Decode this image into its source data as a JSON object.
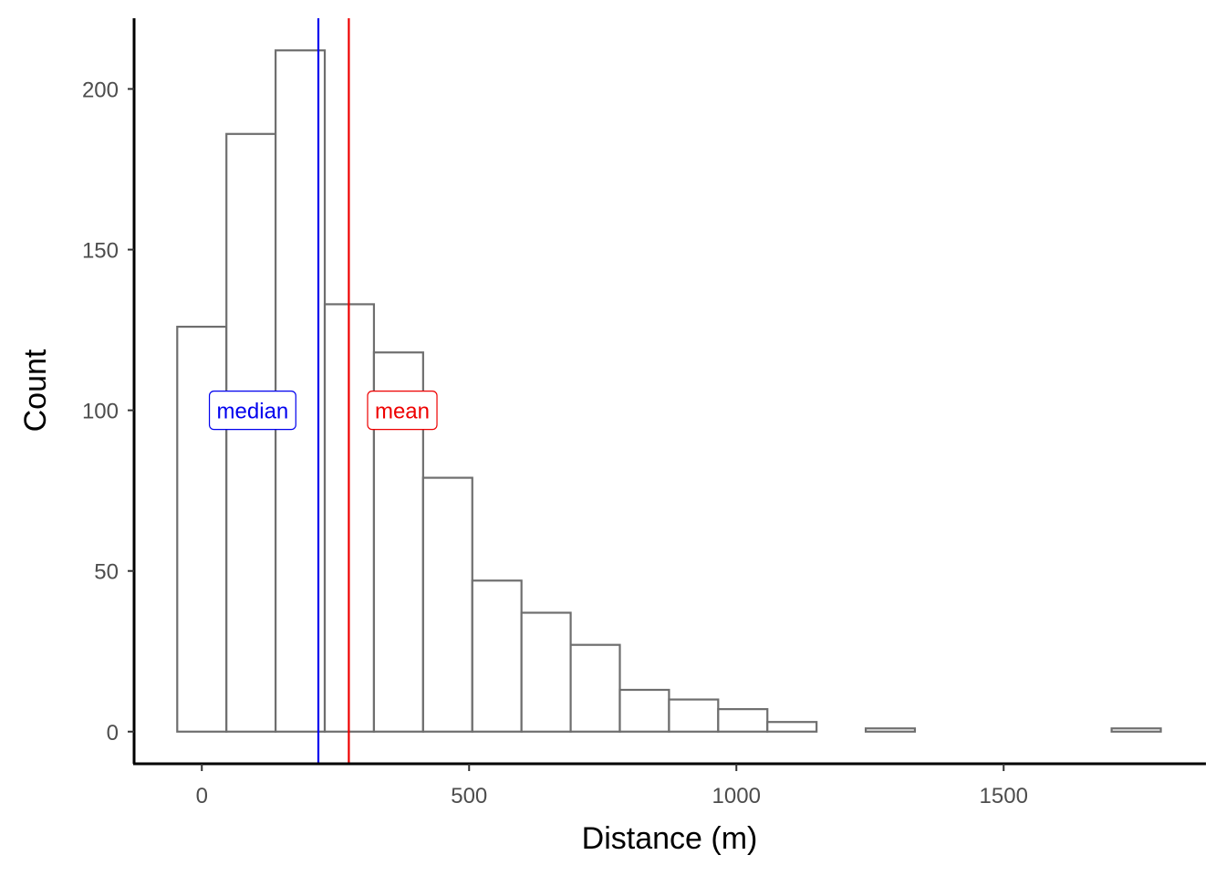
{
  "chart_data": {
    "type": "bar",
    "subtype": "histogram",
    "title": "",
    "xlabel": "Distance (m)",
    "ylabel": "Count",
    "xlim": [
      -125,
      1875
    ],
    "ylim": [
      -10,
      222
    ],
    "x_ticks": [
      0,
      500,
      1000,
      1500
    ],
    "x_tick_labels": [
      "0",
      "500",
      "1000",
      "1500"
    ],
    "y_ticks": [
      0,
      50,
      100,
      150,
      200
    ],
    "y_tick_labels": [
      "0",
      "50",
      "100",
      "150",
      "200"
    ],
    "grid": false,
    "bar_fill": "#ffffff",
    "bar_stroke": "#6e6e6e",
    "bins": [
      {
        "x0": -46,
        "x1": 46,
        "count": 126
      },
      {
        "x0": 46,
        "x1": 138,
        "count": 186
      },
      {
        "x0": 138,
        "x1": 230,
        "count": 212
      },
      {
        "x0": 230,
        "x1": 322,
        "count": 133
      },
      {
        "x0": 322,
        "x1": 414,
        "count": 118
      },
      {
        "x0": 414,
        "x1": 506,
        "count": 79
      },
      {
        "x0": 506,
        "x1": 598,
        "count": 47
      },
      {
        "x0": 598,
        "x1": 690,
        "count": 37
      },
      {
        "x0": 690,
        "x1": 782,
        "count": 27
      },
      {
        "x0": 782,
        "x1": 874,
        "count": 13
      },
      {
        "x0": 874,
        "x1": 966,
        "count": 10
      },
      {
        "x0": 966,
        "x1": 1058,
        "count": 7
      },
      {
        "x0": 1058,
        "x1": 1150,
        "count": 3
      },
      {
        "x0": 1150,
        "x1": 1242,
        "count": 0
      },
      {
        "x0": 1242,
        "x1": 1334,
        "count": 1
      },
      {
        "x0": 1334,
        "x1": 1426,
        "count": 0
      },
      {
        "x0": 1426,
        "x1": 1518,
        "count": 0
      },
      {
        "x0": 1518,
        "x1": 1610,
        "count": 0
      },
      {
        "x0": 1610,
        "x1": 1702,
        "count": 0
      },
      {
        "x0": 1702,
        "x1": 1794,
        "count": 1
      }
    ],
    "reference_lines": [
      {
        "label": "median",
        "x": 218,
        "label_x": 95,
        "label_y": 100,
        "color": "#0000ee"
      },
      {
        "label": "mean",
        "x": 275,
        "label_x": 375,
        "label_y": 100,
        "color": "#ee0000"
      }
    ]
  }
}
